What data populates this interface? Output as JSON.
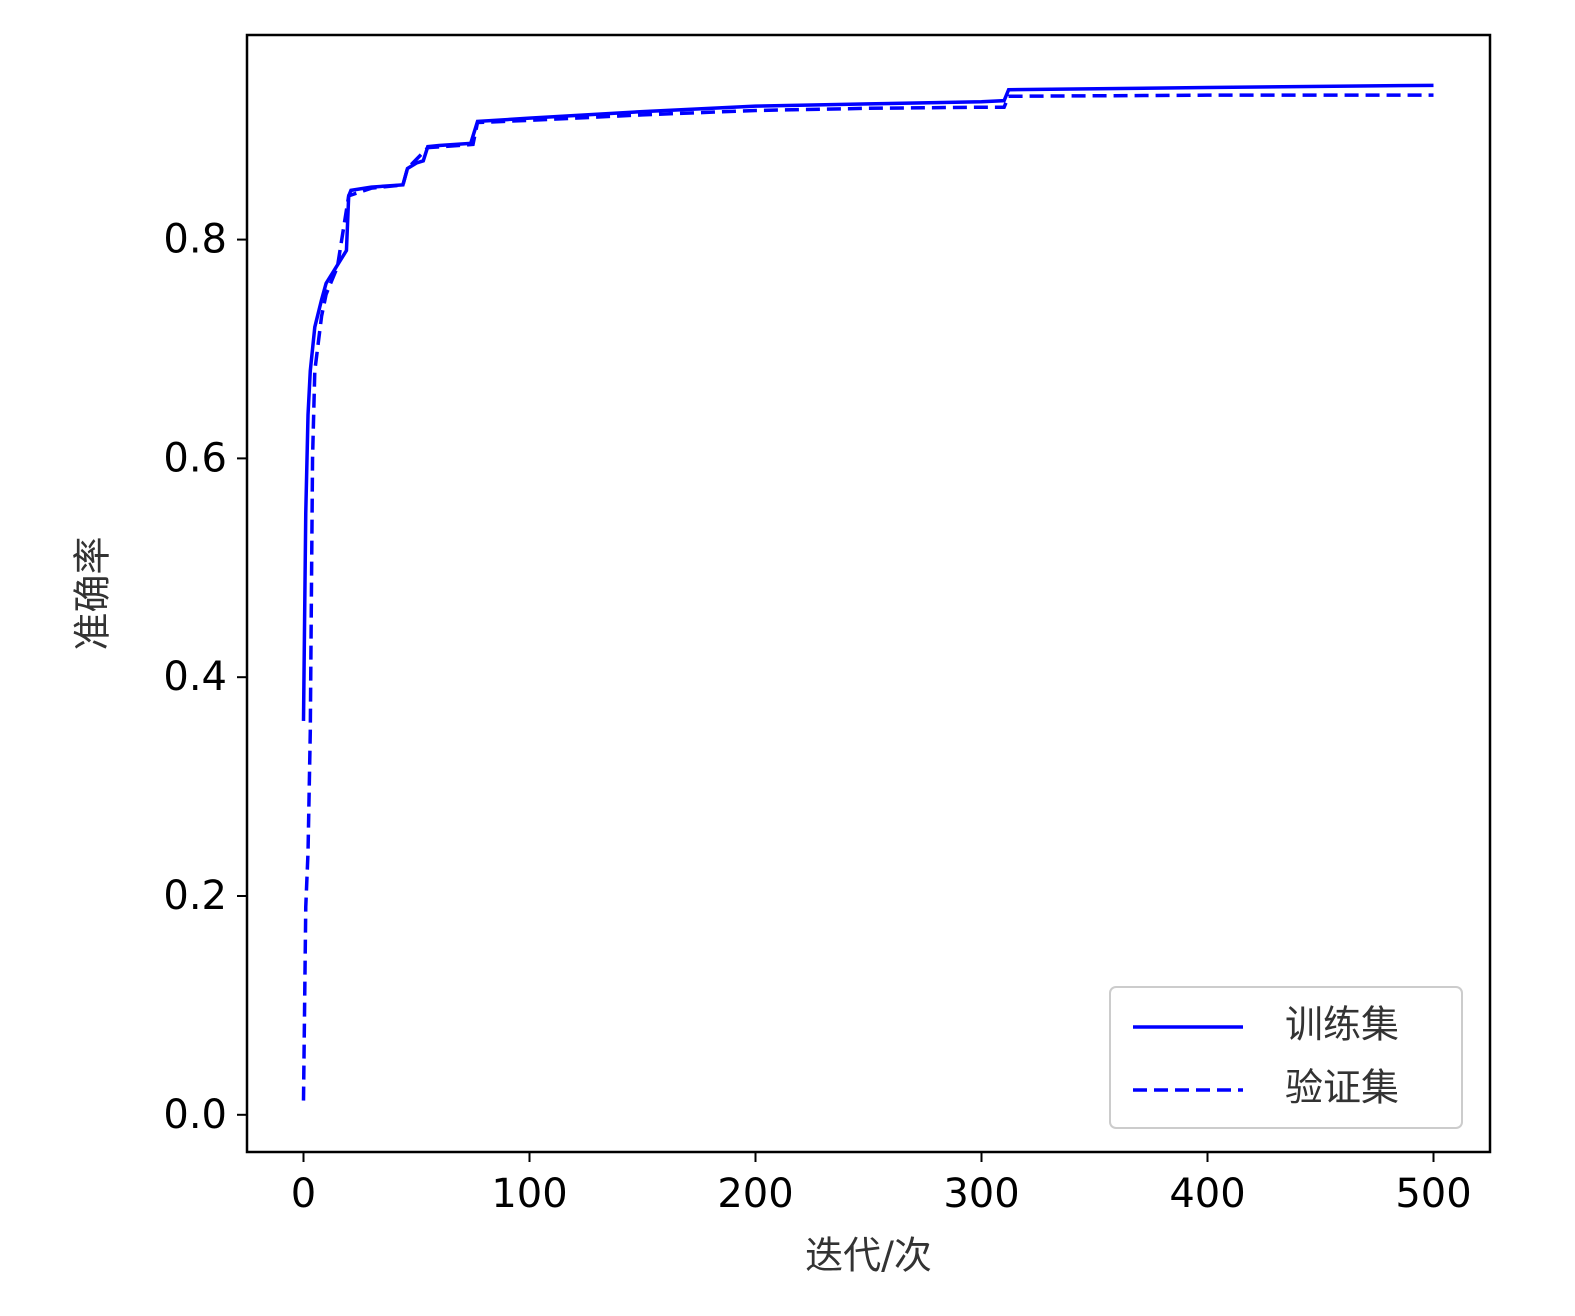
{
  "chart_data": {
    "type": "line",
    "x_label": "迭代/次",
    "y_label": "准确率",
    "xlim": [
      -25,
      525
    ],
    "ylim": [
      -0.034,
      0.987
    ],
    "xticks": [
      0,
      100,
      200,
      300,
      400,
      500
    ],
    "yticks": [
      {
        "value": 0,
        "label": "0.0"
      },
      0.2,
      0.4,
      0.6,
      0.8
    ],
    "legend": "lower right",
    "series": [
      {
        "name": "训练集",
        "color": "#0000ff",
        "linestyle": "solid",
        "x": [
          0,
          1,
          2,
          3,
          5,
          8,
          10,
          13,
          16,
          19,
          20,
          21,
          30,
          44,
          46,
          50,
          53,
          55,
          60,
          74,
          77,
          100,
          150,
          200,
          250,
          300,
          310,
          312,
          400,
          500
        ],
        "values": [
          0.36,
          0.55,
          0.64,
          0.68,
          0.72,
          0.745,
          0.76,
          0.77,
          0.78,
          0.79,
          0.84,
          0.845,
          0.848,
          0.85,
          0.865,
          0.87,
          0.872,
          0.885,
          0.886,
          0.888,
          0.908,
          0.911,
          0.917,
          0.922,
          0.924,
          0.926,
          0.927,
          0.937,
          0.939,
          0.941
        ]
      },
      {
        "name": "验证集",
        "color": "#0000ff",
        "linestyle": "dashed",
        "x": [
          0,
          1,
          2,
          3,
          4,
          5,
          8,
          10,
          15,
          20,
          30,
          44,
          46,
          55,
          75,
          77,
          100,
          150,
          200,
          250,
          300,
          310,
          312,
          400,
          500
        ],
        "values": [
          0.013,
          0.19,
          0.24,
          0.35,
          0.6,
          0.68,
          0.73,
          0.75,
          0.775,
          0.84,
          0.847,
          0.85,
          0.865,
          0.884,
          0.887,
          0.907,
          0.909,
          0.914,
          0.918,
          0.92,
          0.921,
          0.921,
          0.931,
          0.932,
          0.932
        ]
      }
    ]
  }
}
